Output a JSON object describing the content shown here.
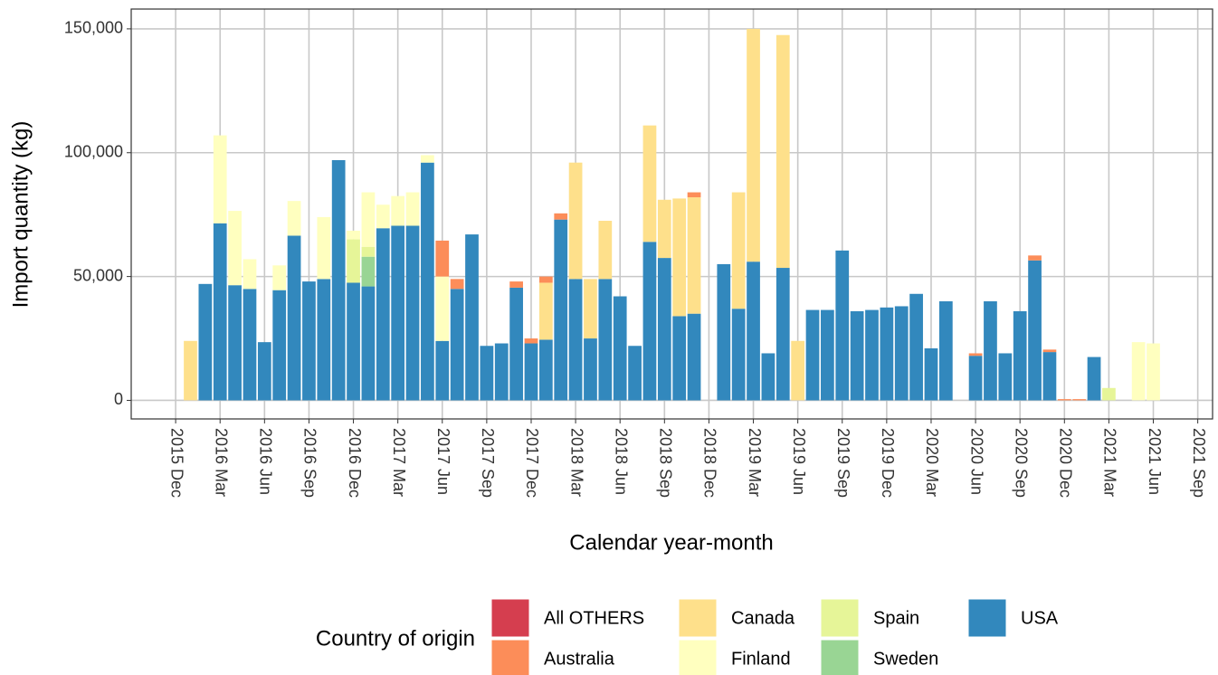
{
  "chart_data": {
    "type": "stacked_bar",
    "x_label": "Calendar year-month",
    "y_label": "Import quantity (kg)",
    "legend_title": "Country of origin",
    "x": [
      "2016 Jan",
      "2016 Feb",
      "2016 Mar",
      "2016 Apr",
      "2016 May",
      "2016 Jun",
      "2016 Jul",
      "2016 Aug",
      "2016 Sep",
      "2016 Oct",
      "2016 Nov",
      "2016 Dec",
      "2017 Jan",
      "2017 Feb",
      "2017 Mar",
      "2017 Apr",
      "2017 May",
      "2017 Jun",
      "2017 Jul",
      "2017 Aug",
      "2017 Sep",
      "2017 Oct",
      "2017 Nov",
      "2017 Dec",
      "2018 Jan",
      "2018 Feb",
      "2018 Mar",
      "2018 Apr",
      "2018 May",
      "2018 Jun",
      "2018 Jul",
      "2018 Aug",
      "2018 Sep",
      "2018 Oct",
      "2018 Nov",
      "2018 Dec",
      "2019 Jan",
      "2019 Feb",
      "2019 Mar",
      "2019 Apr",
      "2019 May",
      "2019 Jun",
      "2019 Jul",
      "2019 Aug",
      "2019 Sep",
      "2019 Oct",
      "2019 Nov",
      "2019 Dec",
      "2020 Jan",
      "2020 Feb",
      "2020 Mar",
      "2020 Apr",
      "2020 May",
      "2020 Jun",
      "2020 Jul",
      "2020 Aug",
      "2020 Sep",
      "2020 Oct",
      "2020 Nov",
      "2020 Dec",
      "2021 Jan",
      "2021 Feb",
      "2021 Mar",
      "2021 Apr",
      "2021 May",
      "2021 Jun"
    ],
    "series": [
      {
        "name": "USA",
        "color": "#3288bd",
        "values": [
          null,
          47000,
          71500,
          46500,
          45000,
          23500,
          44500,
          66500,
          48000,
          49000,
          97000,
          47500,
          46000,
          69500,
          70500,
          70500,
          96000,
          24000,
          45000,
          67000,
          22000,
          23000,
          45500,
          23000,
          24500,
          73000,
          49000,
          25000,
          49000,
          42000,
          22000,
          64000,
          57500,
          34000,
          35000,
          null,
          55000,
          37000,
          56000,
          19000,
          53500,
          null,
          36500,
          36500,
          60500,
          36000,
          36500,
          37500,
          38000,
          43000,
          21000,
          40000,
          null,
          18000,
          40000,
          19000,
          36000,
          56500,
          19500,
          null,
          null,
          17500,
          null,
          null,
          null,
          null
        ]
      },
      {
        "name": "Sweden",
        "color": "#99d594",
        "values": [
          null,
          null,
          null,
          null,
          null,
          null,
          null,
          null,
          null,
          null,
          null,
          null,
          12000,
          null,
          null,
          null,
          null,
          null,
          null,
          null,
          null,
          null,
          null,
          null,
          null,
          null,
          null,
          null,
          null,
          null,
          null,
          null,
          null,
          null,
          null,
          null,
          null,
          null,
          null,
          null,
          null,
          null,
          null,
          null,
          null,
          null,
          null,
          null,
          null,
          null,
          null,
          null,
          null,
          null,
          null,
          null,
          null,
          null,
          null,
          null,
          null,
          null,
          null,
          null,
          null,
          null
        ]
      },
      {
        "name": "Spain",
        "color": "#e6f598",
        "values": [
          null,
          null,
          null,
          null,
          null,
          null,
          null,
          null,
          null,
          null,
          null,
          17500,
          4000,
          null,
          null,
          null,
          null,
          null,
          null,
          null,
          null,
          null,
          null,
          null,
          null,
          null,
          null,
          null,
          null,
          null,
          null,
          null,
          null,
          null,
          null,
          null,
          null,
          null,
          null,
          null,
          null,
          null,
          null,
          null,
          null,
          null,
          null,
          null,
          null,
          null,
          null,
          null,
          null,
          null,
          null,
          null,
          null,
          null,
          null,
          null,
          null,
          null,
          5000,
          null,
          null,
          null
        ]
      },
      {
        "name": "Finland",
        "color": "#ffffbf",
        "values": [
          null,
          null,
          35500,
          30000,
          12000,
          null,
          10000,
          14000,
          null,
          25000,
          null,
          3500,
          22000,
          9500,
          12000,
          13500,
          3000,
          26000,
          null,
          null,
          null,
          null,
          null,
          null,
          null,
          null,
          null,
          null,
          null,
          null,
          null,
          null,
          null,
          null,
          null,
          null,
          null,
          null,
          null,
          null,
          null,
          null,
          null,
          null,
          null,
          null,
          null,
          null,
          null,
          null,
          null,
          null,
          null,
          null,
          null,
          null,
          null,
          null,
          null,
          null,
          null,
          null,
          null,
          null,
          23500,
          23000
        ]
      },
      {
        "name": "Canada",
        "color": "#fee08b",
        "values": [
          24000,
          null,
          null,
          null,
          null,
          null,
          null,
          null,
          null,
          null,
          null,
          null,
          null,
          null,
          null,
          null,
          null,
          null,
          null,
          null,
          null,
          null,
          null,
          null,
          23000,
          null,
          47000,
          24000,
          23500,
          null,
          null,
          47000,
          23500,
          47500,
          47000,
          null,
          null,
          47000,
          94000,
          null,
          94000,
          24000,
          null,
          null,
          null,
          null,
          null,
          null,
          null,
          null,
          null,
          null,
          null,
          null,
          null,
          null,
          null,
          null,
          null,
          null,
          null,
          null,
          null,
          null,
          null,
          null
        ]
      },
      {
        "name": "Australia",
        "color": "#fc8d59",
        "values": [
          null,
          null,
          null,
          null,
          null,
          null,
          null,
          null,
          null,
          null,
          null,
          null,
          null,
          null,
          null,
          null,
          null,
          14500,
          4000,
          null,
          null,
          null,
          2500,
          2000,
          2500,
          2500,
          null,
          null,
          null,
          null,
          null,
          null,
          null,
          null,
          2000,
          null,
          null,
          null,
          null,
          null,
          null,
          null,
          null,
          null,
          null,
          null,
          null,
          null,
          null,
          null,
          null,
          null,
          null,
          1000,
          null,
          null,
          null,
          2000,
          1000,
          500,
          500,
          null,
          null,
          null,
          null,
          null
        ]
      },
      {
        "name": "All OTHERS",
        "color": "#d53e4f",
        "values": [
          null,
          null,
          null,
          null,
          null,
          null,
          null,
          null,
          null,
          null,
          null,
          null,
          null,
          null,
          null,
          null,
          null,
          null,
          null,
          null,
          null,
          null,
          null,
          null,
          null,
          null,
          null,
          null,
          null,
          null,
          null,
          null,
          null,
          null,
          null,
          null,
          null,
          null,
          null,
          null,
          null,
          null,
          null,
          null,
          null,
          null,
          null,
          null,
          null,
          null,
          null,
          null,
          null,
          null,
          null,
          null,
          null,
          null,
          null,
          null,
          null,
          null,
          null,
          null,
          null,
          null
        ]
      }
    ],
    "legend_order": [
      "All OTHERS",
      "Australia",
      "Canada",
      "Finland",
      "Spain",
      "Sweden",
      "USA"
    ],
    "xlim": [
      "2015 Sep",
      "2021 Oct"
    ],
    "xticks": [
      "2015 Dec",
      "2016 Mar",
      "2016 Jun",
      "2016 Sep",
      "2016 Dec",
      "2017 Mar",
      "2017 Jun",
      "2017 Sep",
      "2017 Dec",
      "2018 Mar",
      "2018 Jun",
      "2018 Sep",
      "2018 Dec",
      "2019 Mar",
      "2019 Jun",
      "2019 Sep",
      "2019 Dec",
      "2020 Mar",
      "2020 Jun",
      "2020 Sep",
      "2020 Dec",
      "2021 Mar",
      "2021 Jun",
      "2021 Sep"
    ],
    "ylim": [
      -7500,
      158000
    ],
    "yticks": [
      0,
      {
        "value": 50000,
        "label": "50,000"
      },
      {
        "value": 100000,
        "label": "100,000"
      },
      {
        "value": 150000,
        "label": "150,000"
      }
    ],
    "grid": true,
    "legend_position": "bottom"
  }
}
